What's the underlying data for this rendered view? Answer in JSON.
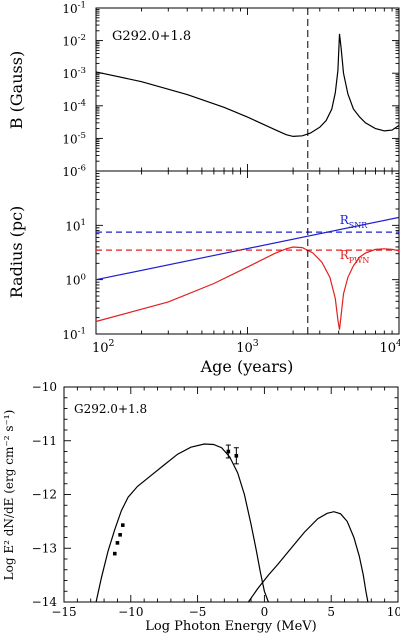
{
  "chart_data": [
    {
      "type": "line",
      "panel": "magnetic-field",
      "annotation": "G292.0+1.8",
      "ylabel": "B (Gauss)",
      "xlabel": "",
      "xscale": "log",
      "yscale": "log",
      "xlim": [
        100,
        10000
      ],
      "ylim": [
        1e-06,
        0.1
      ],
      "ytick_labels": [
        {
          "value": 1e-06,
          "base": "10",
          "exp": "-6"
        },
        {
          "value": 1e-05,
          "base": "10",
          "exp": "-5"
        },
        {
          "value": 0.0001,
          "base": "10",
          "exp": "-4"
        },
        {
          "value": 0.001,
          "base": "10",
          "exp": "-3"
        },
        {
          "value": 0.01,
          "base": "10",
          "exp": "-2"
        },
        {
          "value": 0.1,
          "base": "10",
          "exp": "-1"
        }
      ],
      "vline_age": 2500,
      "series": [
        {
          "color": "#000000",
          "x": [
            100,
            200,
            400,
            700,
            1000,
            1500,
            1800,
            2000,
            2300,
            2600,
            3000,
            3300,
            3600,
            3800,
            3950,
            4050,
            4150,
            4300,
            4600,
            5000,
            5500,
            6000,
            7000,
            8000,
            9000,
            10000
          ],
          "y": [
            0.0011,
            0.00055,
            0.00022,
            9e-05,
            4.5e-05,
            1.9e-05,
            1.3e-05,
            1.15e-05,
            1.2e-05,
            1.45e-05,
            2.2e-05,
            3.5e-05,
            8e-05,
            0.00025,
            0.0012,
            0.016,
            0.006,
            0.001,
            0.00023,
            8e-05,
            4.5e-05,
            3e-05,
            2e-05,
            1.7e-05,
            1.8e-05,
            2.5e-05
          ]
        }
      ]
    },
    {
      "type": "line",
      "panel": "radius",
      "ylabel": "Radius (pc)",
      "xlabel": "Age (years)",
      "xscale": "log",
      "yscale": "log",
      "xlim": [
        100,
        10000
      ],
      "ylim": [
        0.1,
        100
      ],
      "ytick_labels": [
        {
          "value": 0.1,
          "base": "10",
          "exp": "-1"
        },
        {
          "value": 1,
          "base": "10",
          "exp": "0"
        },
        {
          "value": 10,
          "base": "10",
          "exp": "1"
        }
      ],
      "xtick_labels": [
        {
          "value": 100,
          "base": "10",
          "exp": "2"
        },
        {
          "value": 1000,
          "base": "10",
          "exp": "3"
        },
        {
          "value": 10000,
          "base": "10",
          "exp": "4"
        }
      ],
      "vline_age": 2500,
      "series": [
        {
          "label_main": "R",
          "label_sub": "SNR",
          "color": "#2020d0",
          "label_at": [
            1900,
            10.5
          ],
          "x": [
            100,
            10000
          ],
          "y": [
            1.0,
            14
          ]
        },
        {
          "style": "dashed",
          "color": "#2020d0",
          "x": [
            100,
            10000
          ],
          "y": [
            7.5,
            7.5
          ]
        },
        {
          "label_main": "R",
          "label_sub": "PWN",
          "color": "#e02020",
          "label_at": [
            1900,
            2.4
          ],
          "x": [
            100,
            300,
            600,
            1000,
            1500,
            1800,
            2000,
            2300,
            2700,
            3100,
            3500,
            3800,
            3950,
            4050,
            4150,
            4300,
            4600,
            5000,
            5500,
            6000,
            7000,
            8000,
            9000,
            10000
          ],
          "y": [
            0.17,
            0.39,
            0.85,
            1.7,
            3.0,
            3.7,
            4.0,
            3.9,
            3.1,
            2.1,
            1.1,
            0.45,
            0.18,
            0.12,
            0.22,
            0.55,
            1.1,
            1.8,
            2.6,
            3.1,
            3.6,
            3.7,
            3.6,
            3.4
          ]
        },
        {
          "style": "dashed",
          "color": "#e02020",
          "x": [
            100,
            10000
          ],
          "y": [
            3.5,
            3.5
          ]
        }
      ]
    },
    {
      "type": "line",
      "panel": "spectrum",
      "annotation": "G292.0+1.8",
      "xlabel": "Log Photon Energy (MeV)",
      "ylabel": "Log E² dN/dE (erg cm⁻² s⁻¹)",
      "xlim": [
        -15,
        10
      ],
      "ylim": [
        -14,
        -10
      ],
      "xticks": [
        "−15",
        "−10",
        "−5",
        "0",
        "5",
        "10"
      ],
      "yticks": [
        "−10",
        "−11",
        "−12",
        "−13",
        "−14"
      ],
      "series": [
        {
          "color": "#000000",
          "x": [
            -12.6,
            -12.2,
            -11.7,
            -11.2,
            -10.7,
            -10.2,
            -9.5,
            -8.5,
            -7.5,
            -6.5,
            -5.5,
            -4.5,
            -3.8,
            -3.2,
            -2.6,
            -2.0,
            -1.5,
            -1.0,
            -0.6,
            -0.3,
            0.0,
            0.3
          ],
          "y": [
            -14.0,
            -13.55,
            -13.05,
            -12.65,
            -12.3,
            -12.05,
            -11.85,
            -11.65,
            -11.45,
            -11.25,
            -11.12,
            -11.06,
            -11.07,
            -11.13,
            -11.3,
            -11.6,
            -12.0,
            -12.55,
            -13.05,
            -13.45,
            -13.8,
            -14.0
          ]
        },
        {
          "color": "#000000",
          "x": [
            -1.2,
            -0.5,
            0.3,
            1.0,
            2.0,
            3.0,
            4.0,
            4.7,
            5.2,
            5.7,
            6.2,
            6.7,
            7.1,
            7.4,
            7.6,
            7.75
          ],
          "y": [
            -14.0,
            -13.75,
            -13.5,
            -13.3,
            -13.0,
            -12.7,
            -12.45,
            -12.35,
            -12.32,
            -12.36,
            -12.5,
            -12.8,
            -13.15,
            -13.5,
            -13.8,
            -14.0
          ]
        }
      ],
      "points": [
        {
          "x": -11.2,
          "y": -13.1
        },
        {
          "x": -11.0,
          "y": -12.9
        },
        {
          "x": -10.8,
          "y": -12.75
        },
        {
          "x": -10.6,
          "y": -12.57
        },
        {
          "x": -2.7,
          "y": -11.2,
          "err": 0.12
        },
        {
          "x": -2.1,
          "y": -11.28,
          "err": 0.15
        }
      ]
    }
  ]
}
